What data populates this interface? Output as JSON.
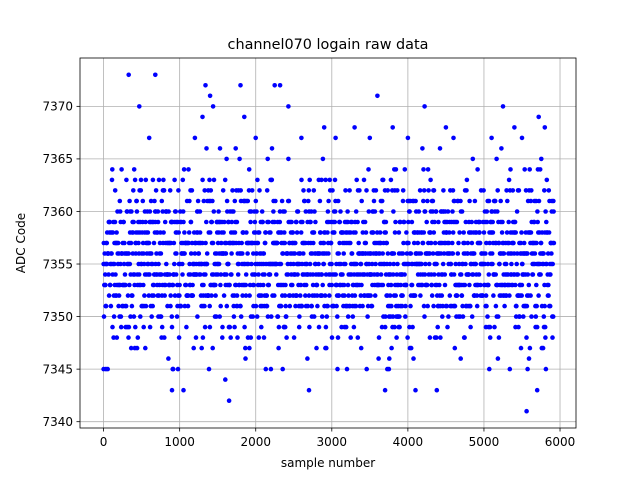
{
  "chart_data": {
    "type": "scatter",
    "title": "channel070 logain raw data",
    "xlabel": "sample number",
    "ylabel": "ADC Code",
    "xlim": [
      -310,
      6210
    ],
    "ylim": [
      7339.4,
      7374.6
    ],
    "xticks": [
      0,
      1000,
      2000,
      3000,
      4000,
      5000,
      6000
    ],
    "yticks": [
      7340,
      7345,
      7350,
      7355,
      7360,
      7365,
      7370
    ],
    "xtick_labels": [
      "0",
      "1000",
      "2000",
      "3000",
      "4000",
      "5000",
      "6000"
    ],
    "ytick_labels": [
      "7340",
      "7345",
      "7350",
      "7355",
      "7360",
      "7365",
      "7370"
    ],
    "grid": true,
    "marker_color": "#0000ff",
    "series": [
      {
        "color": "#0000ff",
        "n_samples": 5920,
        "dense_band": [
          7345,
          7366
        ],
        "x": [
          330,
          680,
          470,
          1340,
          1400,
          1440,
          1800,
          2250,
          2320,
          2430,
          3600,
          4220,
          5250,
          5720,
          5560,
          1650,
          5700,
          2700,
          0,
          30,
          900,
          1050,
          1600,
          3200,
          3700,
          4100,
          4380,
          1300,
          1850,
          2900,
          3300,
          3800,
          4500,
          5400,
          5800,
          600,
          1200,
          2000,
          2600,
          3050,
          3500,
          4000,
          4600,
          5100,
          5500
        ],
        "y": [
          7373,
          7373,
          7370,
          7372,
          7371,
          7370,
          7372,
          7372,
          7372,
          7370,
          7371,
          7370,
          7370,
          7369,
          7341,
          7342,
          7343,
          7343,
          7345,
          7345,
          7343,
          7343,
          7344,
          7345,
          7343,
          7343,
          7343,
          7369,
          7369,
          7368,
          7368,
          7368,
          7368,
          7368,
          7368,
          7367,
          7367,
          7367,
          7367,
          7367,
          7367,
          7367,
          7367,
          7367,
          7367
        ]
      }
    ]
  }
}
